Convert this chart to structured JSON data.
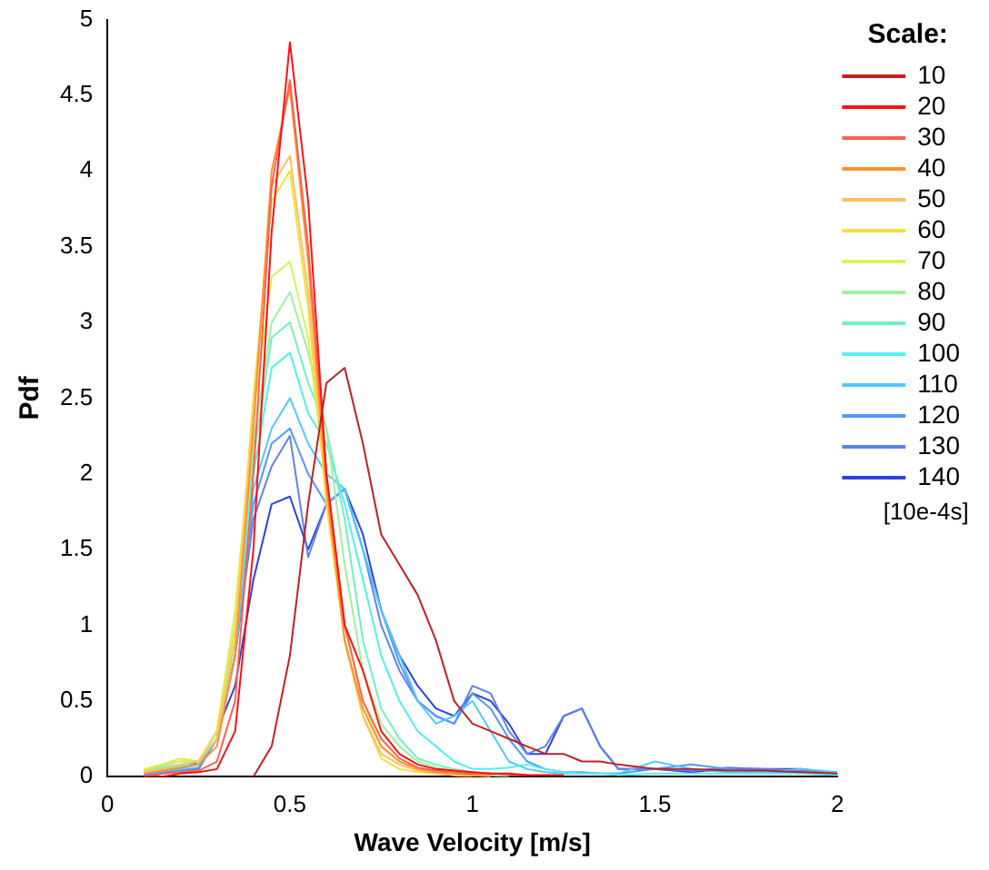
{
  "chart_data": {
    "type": "line",
    "xlabel": "Wave Velocity [m/s]",
    "ylabel": "Pdf",
    "legend_title": "Scale:",
    "legend": "right",
    "annotations": [
      "[10e-4s]"
    ],
    "xlim": [
      0,
      2
    ],
    "xticks": [
      0,
      0.5,
      1,
      1.5,
      2
    ],
    "ylim": [
      0,
      5
    ],
    "yticks": [
      0,
      0.5,
      1,
      1.5,
      2,
      2.5,
      3,
      3.5,
      4,
      4.5,
      5
    ],
    "grid": false,
    "marker": "none",
    "line_style": "solid",
    "x": [
      0.1,
      0.15,
      0.2,
      0.25,
      0.3,
      0.35,
      0.4,
      0.45,
      0.5,
      0.55,
      0.6,
      0.65,
      0.7,
      0.75,
      0.8,
      0.85,
      0.9,
      0.95,
      1.0,
      1.05,
      1.1,
      1.15,
      1.2,
      1.25,
      1.3,
      1.35,
      1.4,
      1.5,
      1.6,
      1.7,
      1.8,
      1.9,
      2.0
    ],
    "series": [
      {
        "name": "10",
        "color": "#c02020",
        "values": [
          null,
          null,
          null,
          null,
          null,
          null,
          0,
          0.2,
          0.8,
          1.8,
          2.6,
          2.7,
          2.2,
          1.6,
          1.4,
          1.2,
          0.9,
          0.5,
          0.35,
          0.3,
          0.25,
          0.2,
          0.15,
          0.15,
          0.1,
          0.1,
          0.08,
          0.05,
          0.05,
          0.04,
          0.04,
          0.03,
          0.02
        ]
      },
      {
        "name": "20",
        "color": "#ff1010",
        "values": [
          0,
          0,
          0.02,
          0.03,
          0.05,
          0.3,
          1.5,
          3.6,
          4.85,
          3.8,
          2.0,
          1.0,
          0.7,
          0.3,
          0.15,
          0.08,
          0.05,
          0.04,
          0.03,
          0.02,
          0.02,
          0.01,
          0.01,
          0.01,
          null,
          null,
          null,
          null,
          null,
          null,
          null,
          null,
          null
        ]
      },
      {
        "name": "30",
        "color": "#ff6050",
        "values": [
          0,
          0.02,
          0.03,
          0.04,
          0.1,
          0.5,
          2.0,
          3.9,
          4.6,
          3.5,
          2.0,
          1.0,
          0.5,
          0.25,
          0.12,
          0.06,
          0.04,
          0.03,
          0.02,
          0.02,
          0.01,
          0.01,
          null,
          null,
          null,
          null,
          null,
          null,
          null,
          null,
          null,
          null,
          null
        ]
      },
      {
        "name": "40",
        "color": "#ff9030",
        "values": [
          0.02,
          0.04,
          0.06,
          0.08,
          0.2,
          0.8,
          2.3,
          4.0,
          4.55,
          3.4,
          1.9,
          0.9,
          0.45,
          0.2,
          0.1,
          0.05,
          0.03,
          0.02,
          0.01,
          0.01,
          null,
          null,
          null,
          null,
          null,
          null,
          null,
          null,
          null,
          null,
          null,
          null,
          null
        ]
      },
      {
        "name": "50",
        "color": "#ffc060",
        "values": [
          0.03,
          0.05,
          0.08,
          0.1,
          0.25,
          0.9,
          2.4,
          3.9,
          4.1,
          3.2,
          1.9,
          0.9,
          0.4,
          0.15,
          0.08,
          0.04,
          0.02,
          0.01,
          0.01,
          0,
          null,
          null,
          null,
          null,
          null,
          null,
          null,
          null,
          null,
          null,
          null,
          null,
          null
        ]
      },
      {
        "name": "60",
        "color": "#f0e040",
        "values": [
          0.04,
          0.08,
          0.12,
          0.1,
          0.3,
          1.0,
          2.5,
          3.8,
          4.0,
          3.1,
          1.8,
          0.9,
          0.4,
          0.12,
          0.05,
          0.03,
          0.02,
          0.01,
          0,
          null,
          null,
          null,
          null,
          null,
          null,
          null,
          null,
          null,
          null,
          null,
          null,
          null,
          null
        ]
      },
      {
        "name": "70",
        "color": "#d8f060",
        "values": [
          0.05,
          0.08,
          0.1,
          0.1,
          0.3,
          1.1,
          2.4,
          3.3,
          3.4,
          2.9,
          1.9,
          1.0,
          0.5,
          0.2,
          0.1,
          0.05,
          0.03,
          0.02,
          0.01,
          0,
          null,
          null,
          null,
          null,
          null,
          null,
          null,
          null,
          null,
          null,
          null,
          null,
          null
        ]
      },
      {
        "name": "80",
        "color": "#a0f0a0",
        "values": [
          0.04,
          0.07,
          0.1,
          0.1,
          0.3,
          1.0,
          2.2,
          3.0,
          3.2,
          2.8,
          2.3,
          1.4,
          0.7,
          0.35,
          0.2,
          0.1,
          0.06,
          0.04,
          0.02,
          0.01,
          0,
          null,
          null,
          null,
          null,
          null,
          null,
          null,
          null,
          null,
          null,
          null,
          null
        ]
      },
      {
        "name": "90",
        "color": "#70f0c0",
        "values": [
          0.04,
          0.06,
          0.08,
          0.1,
          0.3,
          1.0,
          2.1,
          2.9,
          3.0,
          2.6,
          2.3,
          1.7,
          0.9,
          0.45,
          0.25,
          0.12,
          0.08,
          0.05,
          0.03,
          0.02,
          0.01,
          null,
          null,
          null,
          null,
          null,
          null,
          null,
          null,
          null,
          null,
          null,
          null
        ]
      },
      {
        "name": "100",
        "color": "#50f0f0",
        "values": [
          0.03,
          0.05,
          0.07,
          0.08,
          0.3,
          0.9,
          2.0,
          2.7,
          2.8,
          2.4,
          2.2,
          1.8,
          1.3,
          0.8,
          0.5,
          0.3,
          0.2,
          0.1,
          0.05,
          0.05,
          0.06,
          0.08,
          0.05,
          0.03,
          0.02,
          0.02,
          0.01,
          0.02,
          0.02,
          0.02,
          0.02,
          0.02,
          0.01
        ]
      },
      {
        "name": "110",
        "color": "#50c8ff",
        "values": [
          0.02,
          0.04,
          0.05,
          0.08,
          0.25,
          0.8,
          1.9,
          2.3,
          2.5,
          2.2,
          2.0,
          1.9,
          1.5,
          1.1,
          0.8,
          0.5,
          0.35,
          0.4,
          0.5,
          0.3,
          0.1,
          0.05,
          0.03,
          0.02,
          0.02,
          0.02,
          0.02,
          0.1,
          0.05,
          0.03,
          0.03,
          0.05,
          0.03
        ]
      },
      {
        "name": "120",
        "color": "#5098ff",
        "values": [
          0.02,
          0.03,
          0.04,
          0.06,
          0.25,
          0.8,
          1.8,
          2.2,
          2.3,
          2.0,
          1.8,
          1.9,
          1.5,
          1.1,
          0.75,
          0.5,
          0.4,
          0.35,
          0.55,
          0.45,
          0.25,
          0.1,
          0.05,
          0.03,
          0.03,
          0.02,
          0.02,
          0.05,
          0.08,
          0.05,
          0.03,
          0.03,
          0.02
        ]
      },
      {
        "name": "130",
        "color": "#6080f0",
        "values": [
          0.01,
          0.02,
          0.03,
          0.05,
          0.25,
          0.8,
          1.7,
          2.05,
          2.25,
          1.45,
          1.8,
          1.9,
          1.5,
          1.0,
          0.7,
          0.5,
          0.4,
          0.35,
          0.6,
          0.55,
          0.3,
          0.15,
          0.2,
          0.4,
          0.45,
          0.2,
          0.05,
          0.05,
          0.04,
          0.06,
          0.05,
          0.04,
          0.02
        ]
      },
      {
        "name": "140",
        "color": "#3040e0",
        "values": [
          0,
          0.02,
          0.05,
          0.1,
          0.3,
          0.6,
          1.3,
          1.8,
          1.85,
          1.5,
          1.8,
          1.9,
          1.6,
          1.1,
          0.8,
          0.6,
          0.45,
          0.4,
          0.55,
          0.5,
          0.35,
          0.15,
          0.15,
          0.4,
          0.45,
          0.2,
          0.05,
          0.05,
          0.03,
          0.05,
          0.05,
          0.05,
          0.02
        ]
      }
    ]
  }
}
